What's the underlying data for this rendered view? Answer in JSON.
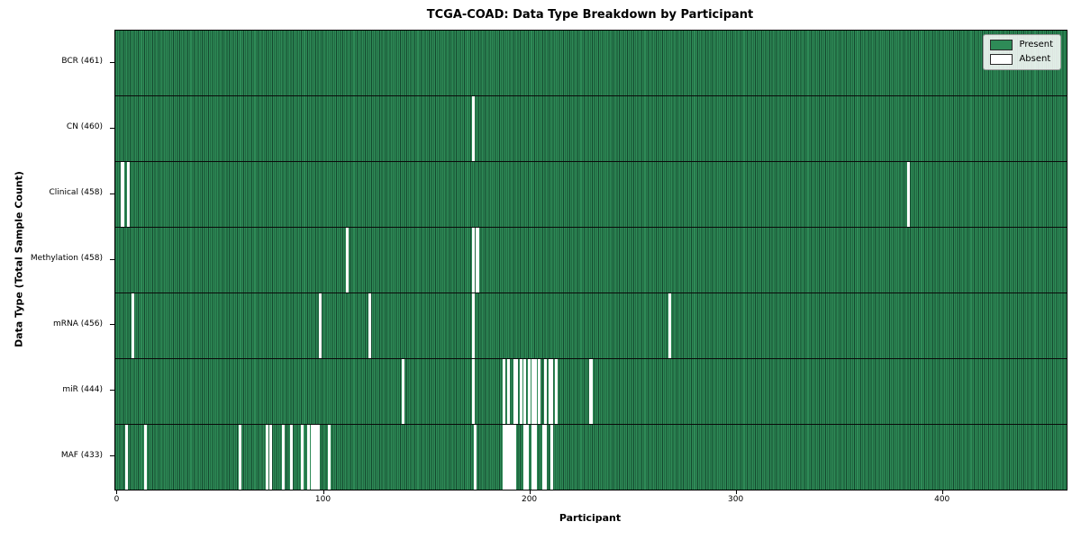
{
  "title": "TCGA-COAD: Data Type Breakdown by Participant",
  "xlabel": "Participant",
  "ylabel": "Data Type (Total Sample Count)",
  "legend": {
    "present_label": "Present",
    "absent_label": "Absent"
  },
  "colors": {
    "present": "#2e8b57",
    "absent": "#ffffff",
    "bar_edge": "#14482e",
    "axis": "#000000"
  },
  "chart_data": {
    "type": "heatmap",
    "title": "TCGA-COAD: Data Type Breakdown by Participant",
    "xlabel": "Participant",
    "ylabel": "Data Type (Total Sample Count)",
    "total_participants": 461,
    "x_range": [
      0,
      461
    ],
    "x_ticks": [
      0,
      100,
      200,
      300,
      400
    ],
    "grid": false,
    "legend_position": "upper right",
    "legend": [
      {
        "label": "Present",
        "color": "#2e8b57"
      },
      {
        "label": "Absent",
        "color": "#ffffff"
      }
    ],
    "rows": [
      {
        "data_type": "BCR",
        "label": "BCR (461)",
        "present_count": 461,
        "absent_participants": []
      },
      {
        "data_type": "CN",
        "label": "CN (460)",
        "present_count": 460,
        "absent_participants": [
          173
        ]
      },
      {
        "data_type": "Clinical",
        "label": "Clinical (458)",
        "present_count": 458,
        "absent_participants": [
          3,
          6,
          384
        ]
      },
      {
        "data_type": "Methylation",
        "label": "Methylation (458)",
        "present_count": 458,
        "absent_participants": [
          112,
          173,
          175
        ]
      },
      {
        "data_type": "mRNA",
        "label": "mRNA (456)",
        "present_count": 456,
        "absent_participants": [
          8,
          99,
          123,
          173,
          268
        ]
      },
      {
        "data_type": "miR",
        "label": "miR (444)",
        "present_count": 444,
        "absent_participants": [
          139,
          173,
          188,
          190,
          193,
          194,
          196,
          198,
          200,
          202,
          203,
          205,
          208,
          210,
          211,
          213,
          230
        ]
      },
      {
        "data_type": "MAF",
        "label": "MAF (433)",
        "present_count": 433,
        "absent_participants": [
          5,
          14,
          60,
          73,
          75,
          81,
          85,
          90,
          93,
          95,
          96,
          97,
          98,
          103,
          174,
          188,
          189,
          190,
          191,
          192,
          193,
          198,
          199,
          202,
          203,
          207,
          208,
          211
        ]
      }
    ]
  }
}
